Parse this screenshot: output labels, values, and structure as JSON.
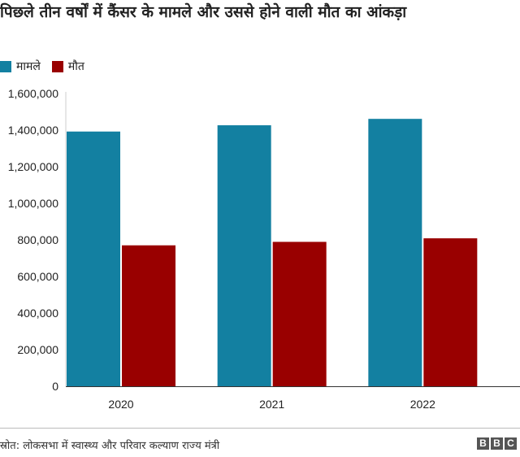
{
  "chart_data": {
    "type": "bar",
    "title": "पिछले तीन वर्षों में कैंसर के मामले और उससे होने वाली मौत का आंकड़ा",
    "categories": [
      "2020",
      "2021",
      "2022"
    ],
    "series": [
      {
        "name": "मामले",
        "color": "#1380a1",
        "values": [
          1392179,
          1426447,
          1461427
        ]
      },
      {
        "name": "मौत",
        "color": "#990000",
        "values": [
          770230,
          789202,
          808558
        ]
      }
    ],
    "ylim": [
      0,
      1600000
    ],
    "yticks": [
      0,
      200000,
      400000,
      600000,
      800000,
      1000000,
      1200000,
      1400000,
      1600000
    ],
    "ytick_labels": [
      "0",
      "200,000",
      "400,000",
      "600,000",
      "800,000",
      "1,000,000",
      "1,200,000",
      "1,400,000",
      "1,600,000"
    ],
    "grid": false,
    "legend": "top-left",
    "xlabel": "",
    "ylabel": ""
  },
  "footer": {
    "source": "स्रोत: लोकसभा में स्वास्थ्य और परिवार कल्याण राज्य मंत्री",
    "logo": [
      "B",
      "B",
      "C"
    ]
  }
}
